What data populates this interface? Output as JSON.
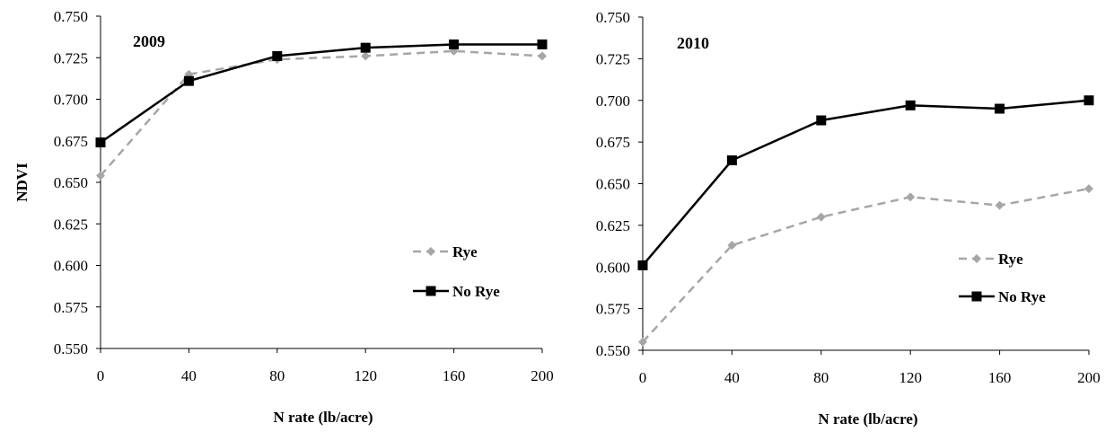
{
  "chart_data": [
    {
      "type": "line",
      "title": "2009",
      "xlabel": "N rate (lb/acre)",
      "ylabel": "NDVI",
      "x": [
        0,
        40,
        80,
        120,
        160,
        200
      ],
      "xlim": [
        0,
        200
      ],
      "ylim": [
        0.55,
        0.75
      ],
      "xticks": [
        "0",
        "40",
        "80",
        "120",
        "160",
        "200"
      ],
      "yticks": [
        "0.550",
        "0.575",
        "0.600",
        "0.625",
        "0.650",
        "0.675",
        "0.700",
        "0.725",
        "0.750"
      ],
      "legend_position": "bottom-right",
      "series": [
        {
          "name": "Rye",
          "values": [
            0.654,
            0.715,
            0.724,
            0.726,
            0.729,
            0.726
          ],
          "color": "#a6a6a6",
          "dash": true,
          "marker": "diamond"
        },
        {
          "name": "No Rye",
          "values": [
            0.674,
            0.711,
            0.726,
            0.731,
            0.733,
            0.733
          ],
          "color": "#000000",
          "dash": false,
          "marker": "square"
        }
      ]
    },
    {
      "type": "line",
      "title": "2010",
      "xlabel": "N rate (lb/acre)",
      "ylabel": "",
      "x": [
        0,
        40,
        80,
        120,
        160,
        200
      ],
      "xlim": [
        0,
        200
      ],
      "ylim": [
        0.55,
        0.75
      ],
      "xticks": [
        "0",
        "40",
        "80",
        "120",
        "160",
        "200"
      ],
      "yticks": [
        "0.550",
        "0.575",
        "0.600",
        "0.625",
        "0.650",
        "0.675",
        "0.700",
        "0.725",
        "0.750"
      ],
      "legend_position": "bottom-right",
      "series": [
        {
          "name": "Rye",
          "values": [
            0.555,
            0.613,
            0.63,
            0.642,
            0.637,
            0.647
          ],
          "color": "#a6a6a6",
          "dash": true,
          "marker": "diamond"
        },
        {
          "name": "No Rye",
          "values": [
            0.601,
            0.664,
            0.688,
            0.697,
            0.695,
            0.7
          ],
          "color": "#000000",
          "dash": false,
          "marker": "square"
        }
      ]
    }
  ]
}
